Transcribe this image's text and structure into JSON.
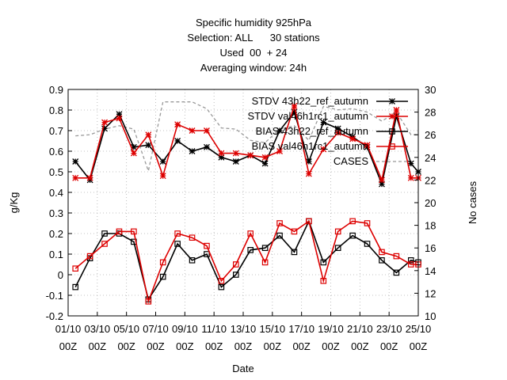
{
  "chart_data": {
    "type": "line",
    "title_lines": [
      "Specific humidity 925hPa",
      "Selection: ALL      30 stations",
      "Used  00  + 24",
      "Averaging window: 24h"
    ],
    "xlabel": "Date",
    "ylabel": "g/Kg",
    "y2label": "No cases",
    "ylim": [
      -0.2,
      0.9
    ],
    "y2lim": [
      10,
      30
    ],
    "yticks": [
      -0.2,
      -0.1,
      0,
      0.1,
      0.2,
      0.3,
      0.4,
      0.5,
      0.6,
      0.7,
      0.8,
      0.9
    ],
    "yticklabels": [
      "-0.2",
      "-0.1",
      "0",
      "0.1",
      "0.2",
      "0.3",
      "0.4",
      "0.5",
      "0.6",
      "0.7",
      "0.8",
      "0.9"
    ],
    "y2ticks": [
      10,
      12,
      14,
      16,
      18,
      20,
      22,
      24,
      26,
      28,
      30
    ],
    "y2ticklabels": [
      "10",
      "12",
      "14",
      "16",
      "18",
      "20",
      "22",
      "24",
      "26",
      "28",
      "30"
    ],
    "xticks": [
      1,
      3,
      5,
      7,
      9,
      11,
      13,
      15,
      17,
      19,
      21,
      23,
      25
    ],
    "xticklabels": [
      [
        "01/10",
        "00Z"
      ],
      [
        "03/10",
        "00Z"
      ],
      [
        "05/10",
        "00Z"
      ],
      [
        "07/10",
        "00Z"
      ],
      [
        "09/10",
        "00Z"
      ],
      [
        "11/10",
        "00Z"
      ],
      [
        "13/10",
        "00Z"
      ],
      [
        "15/10",
        "00Z"
      ],
      [
        "17/10",
        "00Z"
      ],
      [
        "19/10",
        "00Z"
      ],
      [
        "21/10",
        "00Z"
      ],
      [
        "23/10",
        "00Z"
      ],
      [
        "25/10",
        "00Z"
      ]
    ],
    "xlim": [
      1,
      25
    ],
    "grid": true,
    "legend_position": "top-right",
    "x": [
      1.5,
      2.5,
      3.5,
      4.5,
      5.5,
      6.5,
      7.5,
      8.5,
      9.5,
      10.5,
      11.5,
      12.5,
      13.5,
      14.5,
      15.5,
      16.5,
      17.5,
      18.5,
      19.5,
      20.5,
      21.5,
      22.5,
      23.5,
      24.5,
      25.0
    ],
    "series": [
      {
        "name": "STDV 43h22_ref_autumn",
        "legend_label": "STDV 43h22_ref_autumn",
        "color": "#000000",
        "marker": "star",
        "axis": "y",
        "values": [
          0.55,
          0.46,
          0.71,
          0.78,
          0.62,
          0.63,
          0.55,
          0.65,
          0.6,
          0.62,
          0.57,
          0.55,
          0.58,
          0.54,
          0.7,
          0.79,
          0.55,
          0.74,
          0.71,
          0.67,
          0.62,
          0.44,
          0.77,
          0.54,
          0.5
        ]
      },
      {
        "name": "STDV val46h1rc1_autumn",
        "legend_label": "STDV val46h1rc1_autumn",
        "color": "#dd0000",
        "marker": "star",
        "axis": "y",
        "values": [
          0.47,
          0.47,
          0.74,
          0.76,
          0.59,
          0.68,
          0.48,
          0.73,
          0.7,
          0.7,
          0.59,
          0.59,
          0.58,
          0.57,
          0.6,
          0.82,
          0.49,
          0.61,
          0.69,
          0.66,
          0.63,
          0.46,
          0.8,
          0.47,
          0.47
        ]
      },
      {
        "name": "BIAS 43h22_ref_autumn",
        "legend_label": "BIAS 43h22_ref_autumn",
        "color": "#000000",
        "marker": "square",
        "axis": "y",
        "values": [
          -0.06,
          0.08,
          0.2,
          0.2,
          0.16,
          -0.12,
          -0.01,
          0.15,
          0.07,
          0.1,
          -0.06,
          0.0,
          0.12,
          0.13,
          0.19,
          0.11,
          0.26,
          0.06,
          0.13,
          0.19,
          0.15,
          0.07,
          0.01,
          0.07,
          0.06
        ]
      },
      {
        "name": "BIAS val46h1rc1_autumn",
        "legend_label": "BIAS val46h1rc1_autumn",
        "color": "#dd0000",
        "marker": "square",
        "axis": "y",
        "values": [
          0.03,
          0.09,
          0.15,
          0.21,
          0.21,
          -0.13,
          0.06,
          0.2,
          0.18,
          0.14,
          -0.03,
          0.05,
          0.2,
          0.06,
          0.25,
          0.21,
          0.26,
          -0.03,
          0.21,
          0.26,
          0.25,
          0.11,
          0.09,
          0.05,
          0.05
        ]
      },
      {
        "name": "CASES",
        "legend_label": "CASES",
        "color": "#999999",
        "marker": "none",
        "dash": "4,3",
        "axis": "y2",
        "values": [
          25.9,
          26.0,
          26.5,
          26.8,
          26.5,
          22.8,
          28.9,
          28.9,
          28.9,
          28.3,
          26.6,
          26.5,
          25.5,
          25.3,
          26.5,
          26.8,
          25.5,
          28.5,
          28.2,
          28.3,
          28.0,
          27.2,
          28.0,
          26.0,
          26.0
        ]
      }
    ]
  }
}
